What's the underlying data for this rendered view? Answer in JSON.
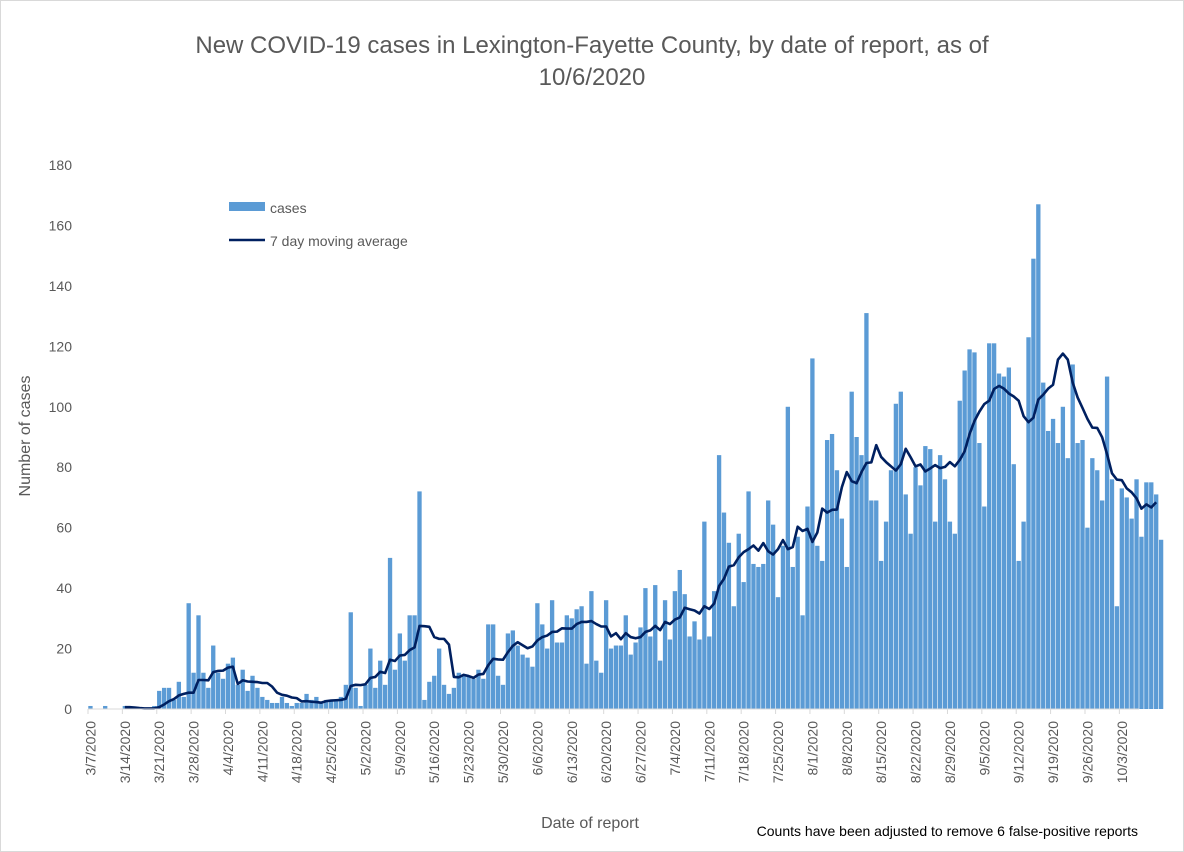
{
  "chart_data": {
    "type": "bar",
    "title": [
      "New COVID-19 cases in Lexington-Fayette County, by date of report, as of",
      "10/6/2020"
    ],
    "xlabel": "Date of report",
    "ylabel": "Number of cases",
    "ylim": [
      0,
      180
    ],
    "yticks": [
      0,
      20,
      40,
      60,
      80,
      100,
      120,
      140,
      160,
      180
    ],
    "grid": false,
    "legend_position": "top-left",
    "footnote": "Counts have been adjusted to remove 6 false-positive reports",
    "x_start": "3/7/2020",
    "x_end": "10/6/2020",
    "x_tick_labels": [
      "3/7/2020",
      "3/14/2020",
      "3/21/2020",
      "3/28/2020",
      "4/4/2020",
      "4/11/2020",
      "4/18/2020",
      "4/25/2020",
      "5/2/2020",
      "5/9/2020",
      "5/16/2020",
      "5/23/2020",
      "5/30/2020",
      "6/6/2020",
      "6/13/2020",
      "6/20/2020",
      "6/27/2020",
      "7/4/2020",
      "7/11/2020",
      "7/18/2020",
      "7/25/2020",
      "8/1/2020",
      "8/8/2020",
      "8/15/2020",
      "8/22/2020",
      "8/29/2020",
      "9/5/2020",
      "9/12/2020",
      "9/19/2020",
      "9/26/2020",
      "10/3/2020"
    ],
    "series": [
      {
        "name": "cases",
        "kind": "bar",
        "color": "#5b9bd5",
        "values": [
          1,
          0,
          0,
          1,
          0,
          0,
          0,
          1,
          1,
          0,
          0,
          0,
          0,
          1,
          6,
          7,
          7,
          3,
          9,
          4,
          35,
          12,
          31,
          12,
          7,
          21,
          12,
          10,
          15,
          17,
          8,
          13,
          6,
          11,
          7,
          4,
          3,
          2,
          2,
          4,
          2,
          1,
          2,
          2,
          5,
          3,
          4,
          2,
          3,
          3,
          3,
          4,
          8,
          32,
          7,
          1,
          8,
          20,
          7,
          16,
          8,
          50,
          13,
          25,
          16,
          31,
          31,
          72,
          3,
          9,
          11,
          20,
          8,
          5,
          7,
          12,
          11,
          11,
          10,
          13,
          10,
          28,
          28,
          11,
          8,
          25,
          26,
          21,
          18,
          17,
          14,
          35,
          28,
          20,
          36,
          22,
          22,
          31,
          30,
          33,
          34,
          15,
          39,
          16,
          12,
          36,
          20,
          21,
          21,
          31,
          18,
          22,
          27,
          40,
          24,
          41,
          16,
          36,
          23,
          39,
          46,
          38,
          24,
          29,
          23,
          62,
          24,
          39,
          84,
          65,
          55,
          34,
          58,
          42,
          72,
          48,
          47,
          48,
          69,
          61,
          37,
          54,
          100,
          47,
          57,
          31,
          67,
          116,
          54,
          49,
          89,
          91,
          79,
          63,
          47,
          105,
          90,
          84,
          131,
          69,
          69,
          49,
          62,
          79,
          101,
          105,
          71,
          58,
          80,
          74,
          87,
          86,
          62,
          84,
          76,
          62,
          58,
          102,
          112,
          119,
          118,
          88,
          67,
          121,
          121,
          111,
          110,
          113,
          81,
          49,
          62,
          123,
          149,
          167,
          108,
          92,
          96,
          88,
          100,
          83,
          114,
          88,
          89,
          60,
          83,
          79,
          69,
          110,
          76,
          34,
          73,
          70,
          63,
          76,
          57,
          75,
          75,
          71,
          56
        ]
      },
      {
        "name": "7 day moving average",
        "kind": "line",
        "color": "#002060",
        "values": [
          null,
          null,
          null,
          null,
          null,
          null,
          null,
          0.6,
          0.6,
          0.5,
          0.3,
          0.2,
          0.2,
          0.2,
          0.6,
          1.5,
          2.6,
          3.3,
          4.5,
          5.0,
          5.4,
          5.4,
          9.6,
          9.6,
          9.5,
          12.2,
          12.6,
          12.7,
          13.7,
          14.0,
          8.3,
          9.5,
          9.1,
          9.0,
          8.9,
          8.6,
          8.6,
          7.4,
          5.4,
          4.7,
          4.4,
          3.8,
          3.6,
          2.5,
          2.6,
          2.4,
          2.3,
          2.1,
          2.6,
          2.8,
          2.9,
          3.0,
          3.4,
          7.6,
          8.0,
          7.9,
          8.2,
          10.3,
          10.6,
          12.3,
          11.9,
          16.3,
          15.9,
          17.7,
          17.9,
          19.5,
          20.4,
          27.5,
          27.4,
          27.2,
          23.8,
          23.2,
          23.2,
          21.3,
          10.6,
          10.5,
          11.3,
          10.9,
          10.3,
          11.4,
          11.6,
          14.5,
          16.6,
          16.4,
          16.3,
          18.8,
          20.9,
          22.1,
          21.1,
          20.1,
          20.7,
          22.7,
          23.8,
          24.3,
          25.5,
          25.6,
          26.7,
          26.6,
          26.6,
          28.1,
          28.8,
          28.8,
          29.1,
          28.1,
          27.3,
          27.3,
          24.0,
          25.1,
          23.1,
          25.1,
          23.8,
          23.4,
          23.8,
          25.5,
          26.0,
          27.5,
          26.1,
          28.8,
          28.1,
          29.6,
          30.3,
          33.5,
          33.0,
          32.6,
          31.6,
          34.0,
          33.1,
          34.9,
          40.7,
          43.1,
          47.1,
          47.6,
          50.2,
          51.9,
          52.9,
          54.1,
          52.4,
          54.9,
          52.2,
          51.1,
          52.9,
          55.9,
          52.9,
          53.6,
          60.3,
          58.9,
          59.6,
          55.3,
          58.4,
          66.3,
          65.0,
          65.9,
          66.0,
          73.4,
          78.4,
          75.4,
          74.7,
          78.4,
          81.4,
          81.6,
          87.3,
          83.4,
          81.7,
          80.3,
          78.9,
          81.0,
          86.1,
          83.3,
          80.3,
          80.9,
          78.6,
          79.6,
          80.7,
          79.7,
          80.1,
          81.7,
          80.3,
          82.4,
          85.3,
          91.0,
          95.3,
          98.4,
          100.9,
          102.0,
          105.9,
          106.9,
          106.0,
          104.4,
          103.4,
          102.0,
          96.9,
          94.9,
          96.4,
          102.4,
          104.0,
          106.0,
          107.3,
          115.6,
          117.6,
          115.6,
          108.0,
          103.1,
          99.6,
          96.0,
          93.1,
          93.0,
          89.9,
          84.3,
          78.0,
          75.9,
          75.7,
          73.0,
          71.7,
          69.7,
          66.3,
          67.7,
          66.7,
          68.4
        ]
      }
    ]
  }
}
